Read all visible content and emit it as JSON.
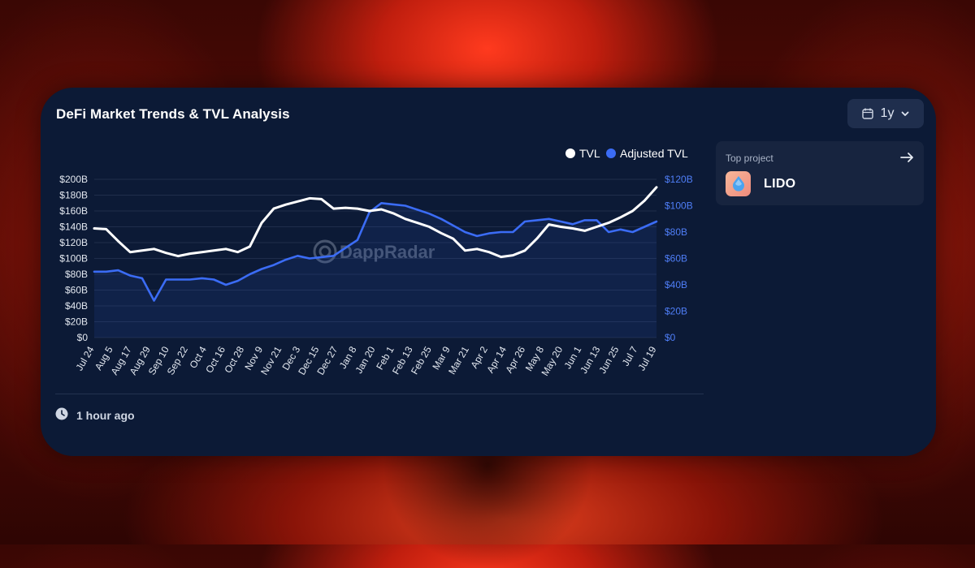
{
  "card": {
    "title": "DeFi Market Trends & TVL Analysis",
    "period_label": "1y",
    "updated_text": "1 hour ago"
  },
  "top_project": {
    "label": "Top project",
    "name": "LIDO"
  },
  "watermark": "DappRadar",
  "colors": {
    "tvl": "#ffffff",
    "adjusted_tvl": "#3b6cf5",
    "card_bg": "#0c1a36"
  },
  "chart_data": {
    "type": "line",
    "legend": [
      "TVL",
      "Adjusted TVL"
    ],
    "legend_position": "top-right",
    "grid": true,
    "x_labels": [
      "Jul 24",
      "Aug 5",
      "Aug 17",
      "Aug 29",
      "Sep 10",
      "Sep 22",
      "Oct 4",
      "Oct 16",
      "Oct 28",
      "Nov 9",
      "Nov 21",
      "Dec 3",
      "Dec 15",
      "Dec 27",
      "Jan 8",
      "Jan 20",
      "Feb 1",
      "Feb 13",
      "Feb 25",
      "Mar 9",
      "Mar 21",
      "Apr 2",
      "Apr 14",
      "Apr 26",
      "May 8",
      "May 20",
      "Jun 1",
      "Jun 13",
      "Jun 25",
      "Jul 7",
      "Jul 19"
    ],
    "y_left": {
      "ticks": [
        "$0",
        "$20B",
        "$40B",
        "$60B",
        "$80B",
        "$100B",
        "$120B",
        "$140B",
        "$160B",
        "$180B",
        "$200B"
      ],
      "range": [
        0,
        200
      ]
    },
    "y_right": {
      "ticks": [
        "$0",
        "$20B",
        "$40B",
        "$60B",
        "$80B",
        "$100B",
        "$120B"
      ],
      "range": [
        0,
        120
      ]
    },
    "series": [
      {
        "name": "TVL",
        "axis": "left",
        "values": [
          138,
          137,
          122,
          108,
          110,
          112,
          107,
          103,
          106,
          108,
          110,
          112,
          108,
          115,
          145,
          163,
          168,
          172,
          176,
          175,
          163,
          164,
          163,
          160,
          162,
          157,
          150,
          145,
          140,
          132,
          125,
          110,
          112,
          108,
          102,
          104,
          110,
          125,
          143,
          140,
          138,
          135,
          140,
          145,
          152,
          160,
          173,
          190
        ]
      },
      {
        "name": "Adjusted TVL",
        "axis": "right",
        "values": [
          50,
          50,
          51,
          47,
          45,
          28,
          44,
          44,
          44,
          45,
          44,
          40,
          43,
          48,
          52,
          55,
          59,
          62,
          60,
          61,
          62,
          68,
          74,
          95,
          102,
          101,
          100,
          97,
          94,
          90,
          85,
          80,
          77,
          79,
          80,
          80,
          88,
          89,
          90,
          88,
          86,
          89,
          89,
          80,
          82,
          80,
          84,
          88
        ]
      }
    ]
  }
}
